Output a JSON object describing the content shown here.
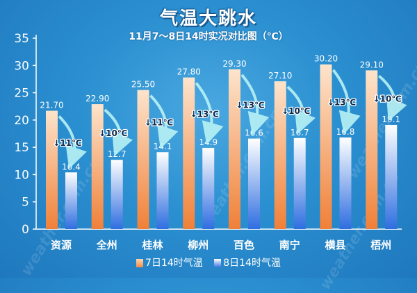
{
  "page": {
    "title": "气温大跳水",
    "subtitle": "11月7～8日14时实况对比图（℃）",
    "watermark": "weather.com.cn"
  },
  "colors": {
    "series1_top": "#fcd7b3",
    "series1_bottom": "#f28a45",
    "series2_top": "#ffffff",
    "series2_bottom": "#3a73e0",
    "arrow": "#b8f2f5"
  },
  "chart_data": {
    "type": "bar",
    "categories": [
      "资源",
      "全州",
      "桂林",
      "柳州",
      "百色",
      "南宁",
      "横县",
      "梧州"
    ],
    "series": [
      {
        "name": "7日14时气温",
        "values": [
          21.7,
          22.9,
          25.5,
          27.8,
          29.3,
          27.1,
          30.2,
          29.1
        ],
        "labels": [
          "21.70",
          "22.90",
          "25.50",
          "27.80",
          "29.30",
          "27.10",
          "30.20",
          "29.10"
        ]
      },
      {
        "name": "8日14时气温",
        "values": [
          10.4,
          12.7,
          14.1,
          14.9,
          16.6,
          16.7,
          16.8,
          19.1
        ],
        "labels": [
          "10.4",
          "12.7",
          "14.1",
          "14.9",
          "16.6",
          "16.7",
          "16.8",
          "19.1"
        ]
      }
    ],
    "drops": [
      "↓11℃",
      "↓10℃",
      "↓11℃",
      "↓13℃",
      "↓13℃",
      "↓10℃",
      "↓13℃",
      "↓10℃"
    ],
    "yticks": [
      "0",
      "5",
      "10",
      "15",
      "20",
      "25",
      "30",
      "35"
    ],
    "ylim": [
      0,
      35
    ],
    "legend_position": "bottom"
  }
}
